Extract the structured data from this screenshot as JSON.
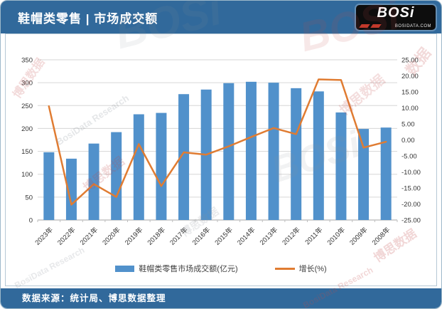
{
  "header": {
    "title": "鞋帽类零售 | 市场成交额",
    "logo": {
      "text": "BOSi",
      "subtext": "BOSIDATA.COM"
    }
  },
  "footer": {
    "source": "数据来源：统计局、博思数据整理"
  },
  "legend": {
    "bar_label": "鞋帽类零售市场成交额(亿元)",
    "line_label": "增长(%)"
  },
  "colors": {
    "bar": "#5191CB",
    "line": "#E07C32",
    "header_bg": "#31699B",
    "grid": "#D6D6D6",
    "axis_line": "#A6A6A6",
    "tick": "#BFBFBF",
    "axis_text": "#333333",
    "watermark_red": "#C24A4A",
    "watermark_gray": "#8A9199",
    "logo_red": "#C0392B"
  },
  "watermarks": [
    "BOSi",
    "博思数据",
    "BosiData Research",
    "数据"
  ],
  "chart_data": {
    "type": "bar+line",
    "title": "鞋帽类零售市场成交额",
    "categories": [
      "2023年",
      "2022年",
      "2021年",
      "2020年",
      "2019年",
      "2018年",
      "2017年",
      "2016年",
      "2015年",
      "2014年",
      "2013年",
      "2012年",
      "2011年",
      "2010年",
      "2009年",
      "2008年"
    ],
    "series": [
      {
        "name": "鞋帽类零售市场成交额(亿元)",
        "type": "bar",
        "axis": "left",
        "values": [
          148,
          134,
          167,
          192,
          231,
          234,
          275,
          285,
          299,
          302,
          300,
          288,
          281,
          235,
          199,
          202
        ]
      },
      {
        "name": "增长(%)",
        "type": "line",
        "axis": "right",
        "values": [
          10.5,
          -20.2,
          -13.8,
          -17.8,
          -1.3,
          -14.4,
          -3.9,
          -4.6,
          -2.0,
          0.9,
          3.7,
          1.8,
          18.9,
          18.7,
          -2.4,
          -0.6
        ]
      }
    ],
    "left_axis": {
      "min": 0,
      "max": 350,
      "step": 50,
      "ticks": [
        "350",
        "300",
        "250",
        "200",
        "150",
        "100",
        "50",
        "0"
      ]
    },
    "right_axis": {
      "min": -25,
      "max": 25,
      "step": 5,
      "ticks": [
        "25.00",
        "20.00",
        "15.00",
        "10.00",
        "5.00",
        "0.00",
        "-5.00",
        "-10.00",
        "-15.00",
        "-20.00",
        "-25.00"
      ]
    },
    "grid": true,
    "legend_position": "bottom"
  }
}
